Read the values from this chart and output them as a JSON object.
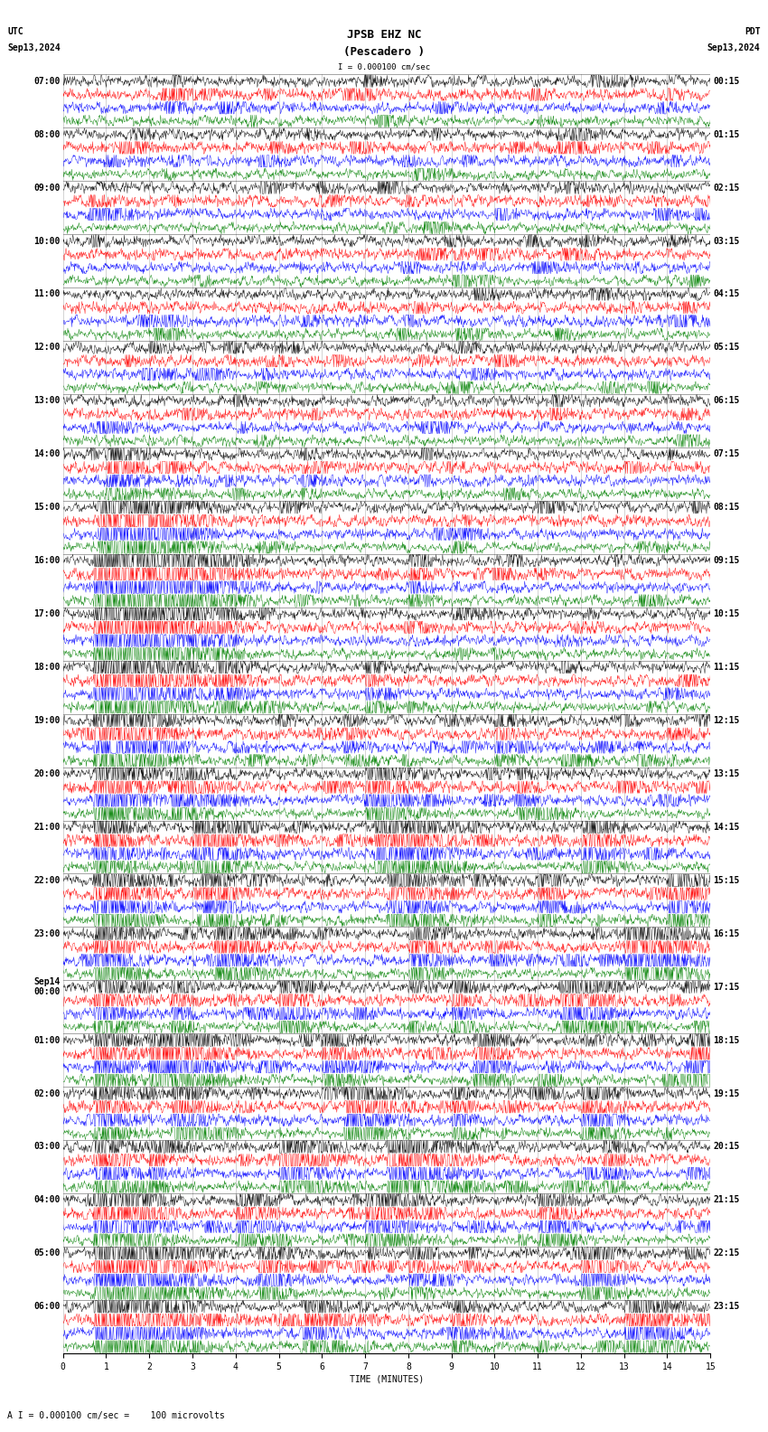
{
  "title_line1": "JPSB EHZ NC",
  "title_line2": "(Pescadero )",
  "scale_text": "I = 0.000100 cm/sec",
  "utc_label": "UTC",
  "pdt_label": "PDT",
  "date_left": "Sep13,2024",
  "date_right": "Sep13,2024",
  "xlabel": "TIME (MINUTES)",
  "bottom_label": "A I = 0.000100 cm/sec =    100 microvolts",
  "left_times": [
    "07:00",
    "08:00",
    "09:00",
    "10:00",
    "11:00",
    "12:00",
    "13:00",
    "14:00",
    "15:00",
    "16:00",
    "17:00",
    "18:00",
    "19:00",
    "20:00",
    "21:00",
    "22:00",
    "23:00",
    "Sep14\n00:00",
    "01:00",
    "02:00",
    "03:00",
    "04:00",
    "05:00",
    "06:00"
  ],
  "right_times": [
    "00:15",
    "01:15",
    "02:15",
    "03:15",
    "04:15",
    "05:15",
    "06:15",
    "07:15",
    "08:15",
    "09:15",
    "10:15",
    "11:15",
    "12:15",
    "13:15",
    "14:15",
    "15:15",
    "16:15",
    "17:15",
    "18:15",
    "19:15",
    "20:15",
    "21:15",
    "22:15",
    "23:15"
  ],
  "colors": [
    "black",
    "red",
    "blue",
    "green"
  ],
  "bg_color": "white",
  "num_rows": 24,
  "traces_per_row": 4,
  "xmin": 0,
  "xmax": 15,
  "fig_width": 8.5,
  "fig_height": 15.84,
  "noise_seed": 12345,
  "title_fontsize": 9,
  "label_fontsize": 7,
  "tick_fontsize": 7,
  "time_label_fontsize": 7
}
